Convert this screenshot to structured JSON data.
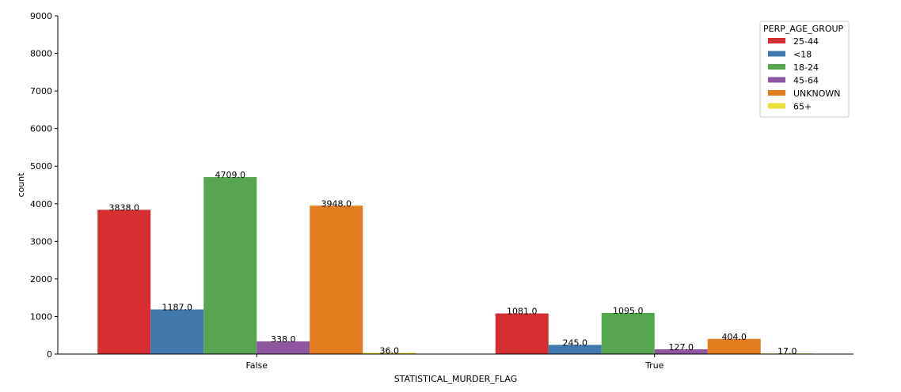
{
  "chart_data": {
    "type": "bar",
    "xlabel": "STATISTICAL_MURDER_FLAG",
    "ylabel": "count",
    "ylim": [
      0,
      9000
    ],
    "yticks": [
      0,
      1000,
      2000,
      3000,
      4000,
      5000,
      6000,
      7000,
      8000,
      9000
    ],
    "categories": [
      "False",
      "True"
    ],
    "grid": false,
    "legend": {
      "title": "PERP_AGE_GROUP",
      "placement": "top-right"
    },
    "series": [
      {
        "name": "25-44",
        "color": "#d62f32",
        "values": [
          3838,
          1081
        ],
        "labels": [
          "3838.0",
          "1081.0"
        ]
      },
      {
        "name": "<18",
        "color": "#3f79ad",
        "values": [
          1187,
          245
        ],
        "labels": [
          "1187.0",
          "245.0"
        ]
      },
      {
        "name": "18-24",
        "color": "#55a64e",
        "values": [
          4709,
          1095
        ],
        "labels": [
          "4709.0",
          "1095.0"
        ]
      },
      {
        "name": "45-64",
        "color": "#8f56a0",
        "values": [
          338,
          127
        ],
        "labels": [
          "338.0",
          "127.0"
        ]
      },
      {
        "name": "UNKNOWN",
        "color": "#e17d1e",
        "values": [
          3948,
          404
        ],
        "labels": [
          "3948.0",
          "404.0"
        ]
      },
      {
        "name": "65+",
        "color": "#e8e13c",
        "values": [
          36,
          17
        ],
        "labels": [
          "36.0",
          "17.0"
        ]
      }
    ]
  }
}
